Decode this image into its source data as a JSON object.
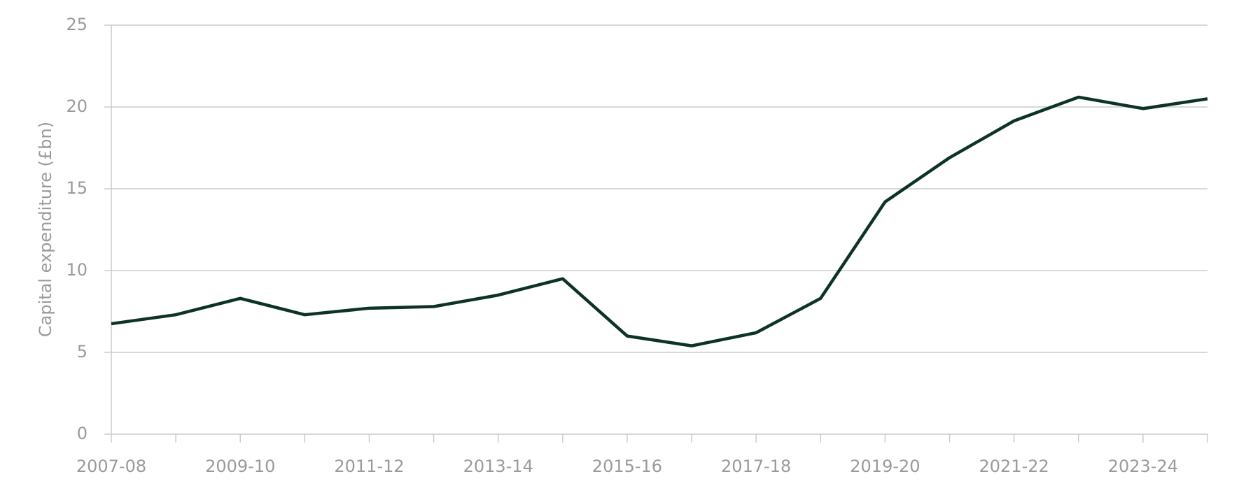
{
  "chart_data": {
    "type": "line",
    "y_label": "Capital expenditure (£bn)",
    "categories": [
      "2007-08",
      null,
      "2009-10",
      null,
      "2011-12",
      null,
      "2013-14",
      null,
      "2015-16",
      null,
      "2017-18",
      null,
      "2019-20",
      null,
      "2021-22",
      null,
      "2023-24",
      null
    ],
    "series": [
      {
        "color": "#0d3328",
        "values": [
          6.75,
          7.3,
          8.3,
          7.3,
          7.7,
          7.8,
          8.5,
          9.5,
          6.0,
          5.4,
          6.2,
          8.3,
          14.2,
          16.9,
          19.15,
          20.6,
          19.9,
          20.5
        ]
      }
    ],
    "ylim": [
      0,
      25
    ],
    "yticks": [
      0,
      5,
      10,
      15,
      20,
      25
    ],
    "grid": true
  }
}
